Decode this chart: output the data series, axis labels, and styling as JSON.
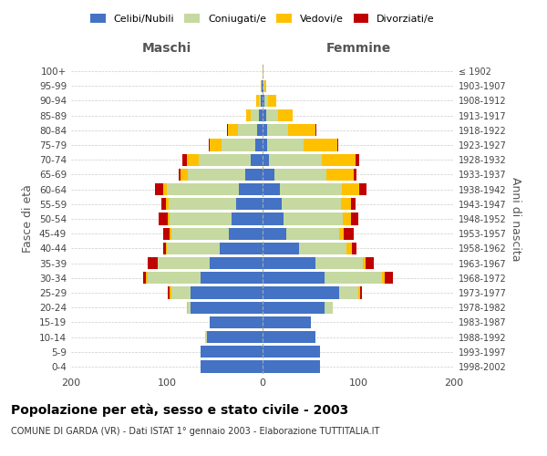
{
  "age_groups": [
    "0-4",
    "5-9",
    "10-14",
    "15-19",
    "20-24",
    "25-29",
    "30-34",
    "35-39",
    "40-44",
    "45-49",
    "50-54",
    "55-59",
    "60-64",
    "65-69",
    "70-74",
    "75-79",
    "80-84",
    "85-89",
    "90-94",
    "95-99",
    "100+"
  ],
  "birth_years": [
    "1998-2002",
    "1993-1997",
    "1988-1992",
    "1983-1987",
    "1978-1982",
    "1973-1977",
    "1968-1972",
    "1963-1967",
    "1958-1962",
    "1953-1957",
    "1948-1952",
    "1943-1947",
    "1938-1942",
    "1933-1937",
    "1928-1932",
    "1923-1927",
    "1918-1922",
    "1913-1917",
    "1908-1912",
    "1903-1907",
    "≤ 1902"
  ],
  "colors": {
    "celibi": "#4472c4",
    "coniugati": "#c5d9a0",
    "vedovi": "#ffc000",
    "divorziati": "#c00000"
  },
  "maschi": {
    "celibi": [
      65,
      65,
      58,
      55,
      75,
      75,
      65,
      55,
      45,
      35,
      32,
      28,
      25,
      18,
      12,
      8,
      6,
      4,
      2,
      1,
      0
    ],
    "coniugati": [
      0,
      0,
      2,
      0,
      3,
      20,
      55,
      55,
      55,
      60,
      65,
      70,
      75,
      60,
      55,
      35,
      20,
      8,
      2,
      0,
      0
    ],
    "vedovi": [
      0,
      0,
      0,
      0,
      1,
      2,
      2,
      0,
      1,
      2,
      2,
      3,
      4,
      8,
      12,
      12,
      10,
      5,
      3,
      1,
      0
    ],
    "divorziati": [
      0,
      0,
      0,
      0,
      0,
      2,
      3,
      10,
      3,
      7,
      10,
      5,
      8,
      2,
      5,
      1,
      1,
      0,
      0,
      0,
      0
    ]
  },
  "femmine": {
    "celibi": [
      60,
      60,
      55,
      50,
      65,
      80,
      65,
      55,
      38,
      25,
      22,
      20,
      18,
      12,
      7,
      5,
      5,
      4,
      2,
      1,
      0
    ],
    "coniugati": [
      0,
      0,
      0,
      0,
      8,
      20,
      60,
      50,
      50,
      55,
      62,
      62,
      65,
      55,
      55,
      38,
      22,
      12,
      4,
      1,
      0
    ],
    "vedovi": [
      0,
      0,
      0,
      0,
      0,
      2,
      3,
      3,
      5,
      5,
      8,
      10,
      18,
      28,
      35,
      35,
      28,
      15,
      8,
      2,
      1
    ],
    "divorziati": [
      0,
      0,
      0,
      0,
      0,
      2,
      8,
      8,
      5,
      10,
      8,
      5,
      8,
      3,
      4,
      1,
      1,
      0,
      0,
      0,
      0
    ]
  },
  "title": "Popolazione per età, sesso e stato civile - 2003",
  "subtitle": "COMUNE DI GARDA (VR) - Dati ISTAT 1° gennaio 2003 - Elaborazione TUTTITALIA.IT",
  "xlabel_left": "Maschi",
  "xlabel_right": "Femmine",
  "ylabel_left": "Fasce di età",
  "ylabel_right": "Anni di nascita",
  "xlim": 200,
  "legend_labels": [
    "Celibi/Nubili",
    "Coniugati/e",
    "Vedovi/e",
    "Divorziati/e"
  ],
  "bg_color": "#ffffff",
  "grid_color": "#cccccc"
}
